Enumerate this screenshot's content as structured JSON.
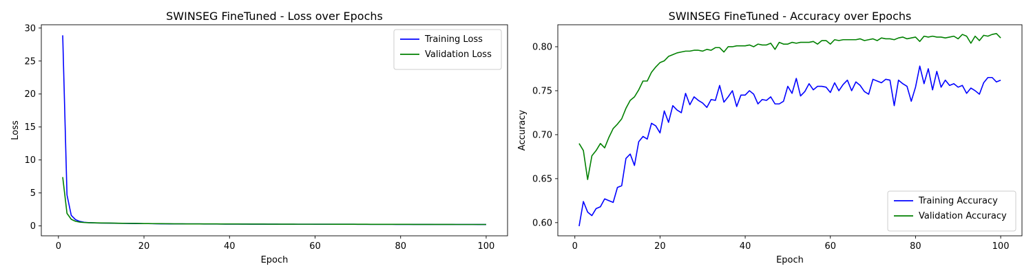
{
  "chart_data": [
    {
      "type": "line",
      "title": "SWINSEG FineTuned - Loss over Epochs",
      "xlabel": "Epoch",
      "ylabel": "Loss",
      "xlim": [
        -4,
        105
      ],
      "ylim": [
        -1.5,
        30.5
      ],
      "xticks": [
        0,
        20,
        40,
        60,
        80,
        100
      ],
      "yticks": [
        0,
        5,
        10,
        15,
        20,
        25,
        30
      ],
      "grid": false,
      "legend_position": "top-right",
      "x": [
        1,
        2,
        3,
        4,
        5,
        6,
        7,
        8,
        9,
        10,
        11,
        12,
        13,
        14,
        15,
        16,
        17,
        18,
        19,
        20,
        21,
        22,
        23,
        24,
        25,
        26,
        27,
        28,
        29,
        30,
        31,
        32,
        33,
        34,
        35,
        36,
        37,
        38,
        39,
        40,
        41,
        42,
        43,
        44,
        45,
        46,
        47,
        48,
        49,
        50,
        51,
        52,
        53,
        54,
        55,
        56,
        57,
        58,
        59,
        60,
        61,
        62,
        63,
        64,
        65,
        66,
        67,
        68,
        69,
        70,
        71,
        72,
        73,
        74,
        75,
        76,
        77,
        78,
        79,
        80,
        81,
        82,
        83,
        84,
        85,
        86,
        87,
        88,
        89,
        90,
        91,
        92,
        93,
        94,
        95,
        96,
        97,
        98,
        99,
        100
      ],
      "series": [
        {
          "name": "Training Loss",
          "color": "#0000ff",
          "values": [
            28.9,
            4.7,
            1.6,
            0.95,
            0.68,
            0.56,
            0.5,
            0.47,
            0.45,
            0.44,
            0.43,
            0.42,
            0.41,
            0.4,
            0.39,
            0.38,
            0.37,
            0.36,
            0.36,
            0.35,
            0.35,
            0.34,
            0.33,
            0.32,
            0.32,
            0.31,
            0.31,
            0.31,
            0.3,
            0.3,
            0.3,
            0.3,
            0.3,
            0.29,
            0.29,
            0.29,
            0.29,
            0.29,
            0.28,
            0.28,
            0.28,
            0.28,
            0.28,
            0.28,
            0.27,
            0.27,
            0.27,
            0.27,
            0.27,
            0.27,
            0.27,
            0.26,
            0.26,
            0.26,
            0.26,
            0.26,
            0.26,
            0.26,
            0.26,
            0.25,
            0.25,
            0.25,
            0.25,
            0.25,
            0.25,
            0.25,
            0.25,
            0.25,
            0.25,
            0.24,
            0.24,
            0.24,
            0.24,
            0.24,
            0.24,
            0.24,
            0.24,
            0.24,
            0.23,
            0.23,
            0.23,
            0.23,
            0.23,
            0.23,
            0.23,
            0.23,
            0.23,
            0.22,
            0.22,
            0.22,
            0.22,
            0.22,
            0.22,
            0.22,
            0.22,
            0.22,
            0.22,
            0.21,
            0.21,
            0.21
          ]
        },
        {
          "name": "Validation Loss",
          "color": "#008000",
          "values": [
            7.4,
            1.9,
            1.0,
            0.7,
            0.58,
            0.52,
            0.49,
            0.47,
            0.46,
            0.45,
            0.44,
            0.43,
            0.42,
            0.41,
            0.4,
            0.39,
            0.38,
            0.38,
            0.37,
            0.36,
            0.36,
            0.35,
            0.34,
            0.34,
            0.33,
            0.33,
            0.32,
            0.32,
            0.32,
            0.31,
            0.31,
            0.31,
            0.3,
            0.3,
            0.3,
            0.3,
            0.3,
            0.29,
            0.29,
            0.29,
            0.29,
            0.29,
            0.28,
            0.28,
            0.28,
            0.28,
            0.28,
            0.28,
            0.27,
            0.27,
            0.27,
            0.27,
            0.27,
            0.27,
            0.27,
            0.26,
            0.26,
            0.26,
            0.26,
            0.26,
            0.26,
            0.26,
            0.26,
            0.25,
            0.25,
            0.25,
            0.25,
            0.25,
            0.25,
            0.25,
            0.25,
            0.25,
            0.24,
            0.24,
            0.24,
            0.24,
            0.24,
            0.24,
            0.24,
            0.24,
            0.24,
            0.24,
            0.23,
            0.23,
            0.23,
            0.23,
            0.23,
            0.23,
            0.23,
            0.23,
            0.23,
            0.23,
            0.22,
            0.22,
            0.22,
            0.22,
            0.22,
            0.22,
            0.22,
            0.22
          ]
        }
      ]
    },
    {
      "type": "line",
      "title": "SWINSEG FineTuned - Accuracy over Epochs",
      "xlabel": "Epoch",
      "ylabel": "Accuracy",
      "xlim": [
        -4,
        105
      ],
      "ylim": [
        0.585,
        0.825
      ],
      "xticks": [
        0,
        20,
        40,
        60,
        80,
        100
      ],
      "yticks": [
        0.6,
        0.65,
        0.7,
        0.75,
        0.8
      ],
      "yticklabels": [
        "0.60",
        "0.65",
        "0.70",
        "0.75",
        "0.80"
      ],
      "grid": false,
      "legend_position": "bottom-right",
      "x": [
        1,
        2,
        3,
        4,
        5,
        6,
        7,
        8,
        9,
        10,
        11,
        12,
        13,
        14,
        15,
        16,
        17,
        18,
        19,
        20,
        21,
        22,
        23,
        24,
        25,
        26,
        27,
        28,
        29,
        30,
        31,
        32,
        33,
        34,
        35,
        36,
        37,
        38,
        39,
        40,
        41,
        42,
        43,
        44,
        45,
        46,
        47,
        48,
        49,
        50,
        51,
        52,
        53,
        54,
        55,
        56,
        57,
        58,
        59,
        60,
        61,
        62,
        63,
        64,
        65,
        66,
        67,
        68,
        69,
        70,
        71,
        72,
        73,
        74,
        75,
        76,
        77,
        78,
        79,
        80,
        81,
        82,
        83,
        84,
        85,
        86,
        87,
        88,
        89,
        90,
        91,
        92,
        93,
        94,
        95,
        96,
        97,
        98,
        99,
        100
      ],
      "series": [
        {
          "name": "Training Accuracy",
          "color": "#0000ff",
          "values": [
            0.596,
            0.624,
            0.612,
            0.608,
            0.616,
            0.618,
            0.627,
            0.625,
            0.623,
            0.64,
            0.642,
            0.673,
            0.678,
            0.665,
            0.692,
            0.698,
            0.695,
            0.713,
            0.71,
            0.702,
            0.727,
            0.714,
            0.733,
            0.728,
            0.725,
            0.747,
            0.734,
            0.743,
            0.739,
            0.736,
            0.731,
            0.74,
            0.739,
            0.756,
            0.737,
            0.743,
            0.75,
            0.732,
            0.745,
            0.745,
            0.75,
            0.746,
            0.735,
            0.74,
            0.739,
            0.743,
            0.735,
            0.735,
            0.738,
            0.755,
            0.747,
            0.764,
            0.744,
            0.749,
            0.758,
            0.751,
            0.755,
            0.755,
            0.754,
            0.748,
            0.759,
            0.75,
            0.757,
            0.762,
            0.75,
            0.76,
            0.756,
            0.749,
            0.746,
            0.763,
            0.761,
            0.759,
            0.763,
            0.762,
            0.733,
            0.762,
            0.758,
            0.755,
            0.738,
            0.754,
            0.778,
            0.758,
            0.775,
            0.751,
            0.772,
            0.754,
            0.762,
            0.756,
            0.758,
            0.754,
            0.756,
            0.747,
            0.753,
            0.75,
            0.746,
            0.759,
            0.765,
            0.765,
            0.76,
            0.762
          ]
        },
        {
          "name": "Validation Accuracy",
          "color": "#008000",
          "values": [
            0.69,
            0.682,
            0.649,
            0.676,
            0.682,
            0.69,
            0.685,
            0.697,
            0.707,
            0.712,
            0.718,
            0.73,
            0.739,
            0.743,
            0.751,
            0.761,
            0.761,
            0.771,
            0.777,
            0.782,
            0.784,
            0.789,
            0.791,
            0.793,
            0.794,
            0.795,
            0.795,
            0.796,
            0.796,
            0.795,
            0.797,
            0.796,
            0.799,
            0.799,
            0.794,
            0.8,
            0.8,
            0.801,
            0.801,
            0.801,
            0.802,
            0.8,
            0.803,
            0.802,
            0.802,
            0.804,
            0.797,
            0.805,
            0.803,
            0.803,
            0.805,
            0.804,
            0.805,
            0.805,
            0.805,
            0.806,
            0.803,
            0.807,
            0.807,
            0.803,
            0.808,
            0.807,
            0.808,
            0.808,
            0.808,
            0.808,
            0.809,
            0.807,
            0.808,
            0.809,
            0.807,
            0.81,
            0.809,
            0.809,
            0.808,
            0.81,
            0.811,
            0.809,
            0.81,
            0.811,
            0.806,
            0.812,
            0.811,
            0.812,
            0.811,
            0.811,
            0.81,
            0.811,
            0.812,
            0.809,
            0.814,
            0.812,
            0.804,
            0.812,
            0.807,
            0.813,
            0.812,
            0.814,
            0.815,
            0.81
          ]
        }
      ]
    }
  ]
}
